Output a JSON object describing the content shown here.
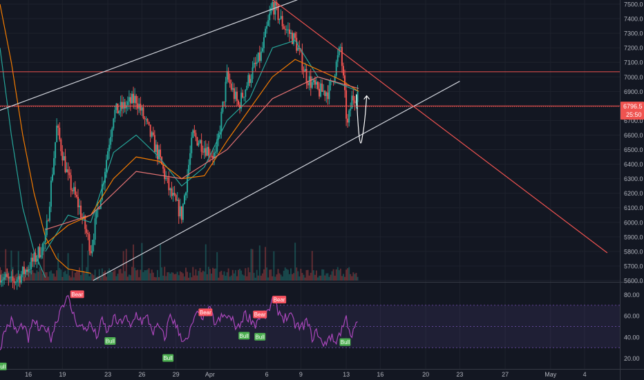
{
  "chart_data": {
    "type": "candlestick",
    "timeframe_note": "",
    "price_axis": {
      "ticks": [
        "7500.0",
        "7400.0",
        "7300.0",
        "7200.0",
        "7100.0",
        "7000.0",
        "6900.0",
        "6800.0",
        "6700.0",
        "6600.0",
        "6500.0",
        "6400.0",
        "6300.0",
        "6200.0",
        "6100.0",
        "6000.0",
        "5900.0",
        "5800.0",
        "5700.0",
        "5600.0"
      ],
      "range": [
        5600,
        7500
      ]
    },
    "current_price": {
      "label": "6796.5",
      "countdown": "25:50",
      "value": 6796.5,
      "color": "#ef5350"
    },
    "horizontal_levels": [
      {
        "value": 7035,
        "color": "#ef5350"
      },
      {
        "value": 6800,
        "color": "#ef5350"
      }
    ],
    "time_axis": {
      "ticks": [
        "16",
        "19",
        "23",
        "26",
        "29",
        "Apr",
        "6",
        "9",
        "13",
        "16",
        "20",
        "23",
        "27",
        "May",
        "4"
      ],
      "day_index": [
        2.5,
        5.5,
        9.5,
        12.5,
        15.5,
        18.5,
        23.5,
        26.5,
        30.5,
        33.5,
        37.5,
        40.5,
        44.5,
        48.5,
        51.5
      ],
      "range": [
        0,
        54.6
      ]
    },
    "price_series": {
      "day": [
        0,
        1,
        2,
        3,
        4,
        5,
        6,
        7,
        8,
        9,
        10,
        11,
        12,
        13,
        14,
        15,
        16,
        17,
        18,
        19,
        20,
        21,
        22,
        23,
        24,
        25,
        26,
        27,
        28,
        29,
        30,
        30.6,
        31,
        31.6
      ],
      "close": [
        5640,
        5580,
        5650,
        5740,
        5870,
        6650,
        6300,
        6100,
        5820,
        6250,
        6750,
        6800,
        6850,
        6650,
        6450,
        6200,
        6050,
        6600,
        6520,
        6450,
        7000,
        6800,
        7000,
        7150,
        7500,
        7350,
        7250,
        7000,
        6900,
        6900,
        7200,
        6650,
        6850,
        6900
      ]
    },
    "moving_averages": [
      {
        "color": "#26a69a",
        "day": [
          4,
          6,
          8,
          10,
          12,
          14,
          16,
          18,
          20,
          22,
          24,
          26,
          28,
          30,
          31.6
        ],
        "value": [
          5800,
          6050,
          6000,
          6480,
          6600,
          6450,
          6250,
          6380,
          6700,
          6850,
          7200,
          7250,
          7000,
          6950,
          6900
        ]
      },
      {
        "color": "#f57c00",
        "day": [
          4,
          6,
          8,
          10,
          12,
          14,
          16,
          18,
          20,
          22,
          24,
          26,
          28,
          30,
          31.6
        ],
        "value": [
          5850,
          5980,
          6050,
          6300,
          6450,
          6420,
          6300,
          6320,
          6560,
          6780,
          7000,
          7120,
          7050,
          6980,
          6900
        ]
      },
      {
        "color": "#e57373",
        "day": [
          4,
          8,
          12,
          16,
          20,
          24,
          28,
          31.6
        ],
        "value": [
          5950,
          6050,
          6350,
          6300,
          6500,
          6850,
          7000,
          6920
        ]
      }
    ],
    "long_ma_curves": [
      {
        "color": "#f57c00",
        "day": [
          0,
          1,
          2,
          3,
          4,
          5,
          6,
          8
        ],
        "value": [
          7500,
          7100,
          6600,
          6200,
          5900,
          5750,
          5680,
          5650
        ]
      },
      {
        "color": "#26a69a",
        "day": [
          0,
          1,
          2,
          3,
          4
        ],
        "value": [
          7200,
          6600,
          6100,
          5800,
          5620
        ]
      }
    ],
    "trendlines": [
      {
        "color": "#d1d4dc",
        "from": {
          "day": 0,
          "price": 6770
        },
        "to": {
          "day": 26.2,
          "price": 7530
        }
      },
      {
        "color": "#d1d4dc",
        "from": {
          "day": 8.2,
          "price": 5600
        },
        "to": {
          "day": 40.5,
          "price": 6970
        }
      },
      {
        "color": "#ef5350",
        "from": {
          "day": 24,
          "price": 7530
        },
        "to": {
          "day": 53.5,
          "price": 5790
        }
      }
    ],
    "projection_arrow": {
      "color": "#ffffff",
      "from": {
        "day": 31.4,
        "price": 6880
      },
      "via": {
        "day": 31.9,
        "price": 6580
      },
      "to": {
        "day": 32.3,
        "price": 6870
      }
    },
    "rsi": {
      "ticks": [
        "80.00",
        "60.00",
        "40.00",
        "20.00"
      ],
      "range": [
        10,
        90
      ],
      "band": [
        30,
        70
      ],
      "day": [
        0,
        0.5,
        1,
        1.5,
        2,
        2.5,
        3,
        3.5,
        4,
        4.5,
        5,
        5.5,
        6,
        6.5,
        7,
        7.5,
        8,
        8.5,
        9,
        9.5,
        10,
        10.5,
        11,
        11.5,
        12,
        12.5,
        13,
        13.5,
        14,
        14.5,
        15,
        15.5,
        16,
        16.5,
        17,
        17.5,
        18,
        18.5,
        19,
        19.5,
        20,
        20.5,
        21,
        21.5,
        22,
        22.5,
        23,
        23.5,
        24,
        24.5,
        25,
        25.5,
        26,
        26.5,
        27,
        27.5,
        28,
        28.5,
        29,
        29.5,
        30,
        30.5,
        31,
        31.5
      ],
      "value": [
        30,
        48,
        55,
        44,
        52,
        38,
        57,
        45,
        50,
        40,
        56,
        72,
        76,
        60,
        50,
        48,
        52,
        40,
        55,
        44,
        58,
        52,
        60,
        48,
        62,
        55,
        58,
        45,
        50,
        38,
        62,
        50,
        40,
        35,
        55,
        62,
        60,
        65,
        52,
        58,
        60,
        55,
        48,
        62,
        58,
        52,
        62,
        60,
        75,
        65,
        58,
        60,
        52,
        48,
        55,
        40,
        45,
        30,
        42,
        35,
        45,
        58,
        40,
        55
      ],
      "labels": [
        {
          "text": "Bear",
          "kind": "bear",
          "day": 6.8,
          "value": 80
        },
        {
          "text": "Bull",
          "kind": "bull",
          "day": 0.1,
          "value": 12
        },
        {
          "text": "Bull",
          "kind": "bull",
          "day": 9.7,
          "value": 36
        },
        {
          "text": "Bull",
          "kind": "bull",
          "day": 14.8,
          "value": 20
        },
        {
          "text": "Bear",
          "kind": "bear",
          "day": 18.1,
          "value": 63
        },
        {
          "text": "Bull",
          "kind": "bull",
          "day": 21.5,
          "value": 41
        },
        {
          "text": "Bear",
          "kind": "bear",
          "day": 22.9,
          "value": 61
        },
        {
          "text": "Bull",
          "kind": "bull",
          "day": 22.9,
          "value": 40
        },
        {
          "text": "Bear",
          "kind": "bear",
          "day": 24.6,
          "value": 75
        },
        {
          "text": "Bull",
          "kind": "bull",
          "day": 30.4,
          "value": 35
        }
      ]
    },
    "colors": {
      "bg": "#131722",
      "grid": "#1e222d",
      "up": "#26a69a",
      "down": "#ef5350",
      "rsi_line": "#ab47bc",
      "rsi_band": "#7e57c2",
      "axis_text": "#b2b5be",
      "bull_label": "#4caf50",
      "bear_label": "#f7525f"
    }
  }
}
